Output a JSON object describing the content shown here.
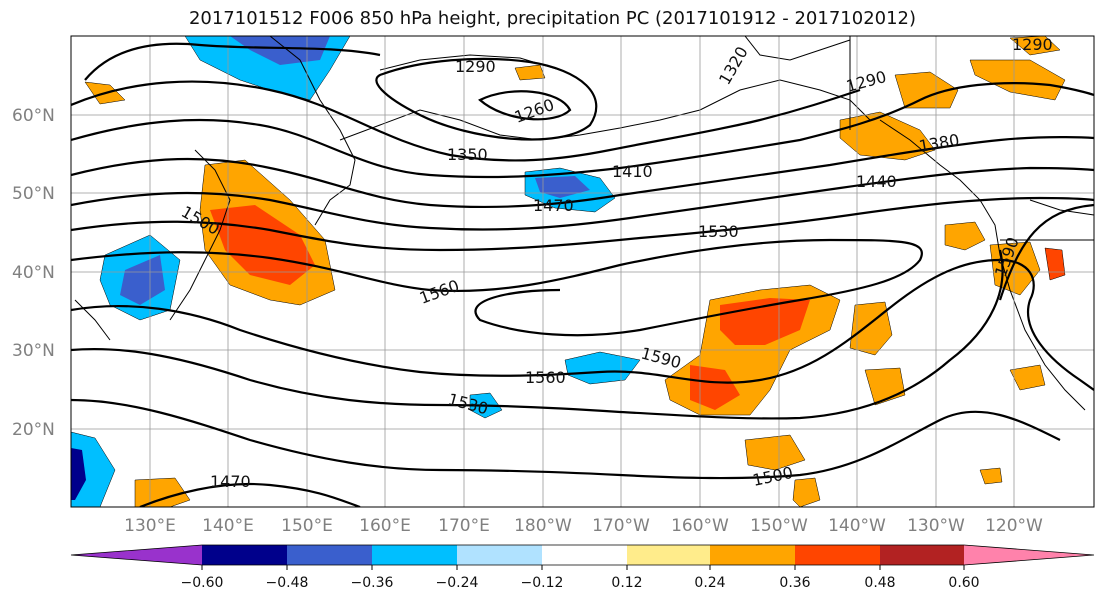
{
  "title": "2017101512 F006 850 hPa height, precipitation PC (2017101912 - 2017102012)",
  "lat_labels": [
    "60°N",
    "50°N",
    "40°N",
    "30°N",
    "20°N"
  ],
  "lon_labels": [
    "130°E",
    "140°E",
    "150°E",
    "160°E",
    "170°E",
    "180°W",
    "170°W",
    "160°W",
    "150°W",
    "140°W",
    "130°W",
    "120°W"
  ],
  "contour_labels": [
    "1290",
    "1320",
    "1290",
    "1260",
    "1290",
    "1350",
    "1410",
    "1440",
    "1470",
    "1380",
    "1500",
    "1530",
    "1590",
    "1560",
    "1590",
    "1560",
    "1530",
    "1500",
    "1470"
  ],
  "colorbar": {
    "ticks": [
      "−0.60",
      "−0.48",
      "−0.36",
      "−0.24",
      "−0.12",
      "0.12",
      "0.24",
      "0.36",
      "0.48",
      "0.60"
    ],
    "colors": [
      "#9932CC",
      "#00008B",
      "#3A5FCD",
      "#00BFFF",
      "#B0E2FF",
      "#FFFFFF",
      "#FFEC8B",
      "#FFA500",
      "#FF4500",
      "#B22222",
      "#FF82AB"
    ]
  }
}
